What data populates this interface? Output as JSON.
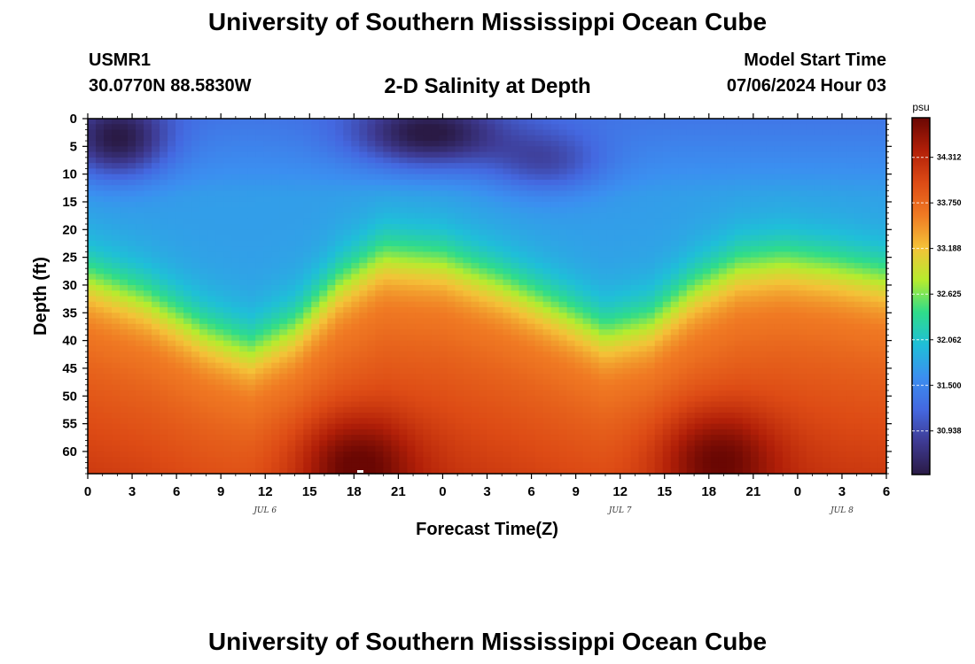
{
  "header": {
    "title": "University of Southern Mississippi Ocean Cube",
    "station_id": "USMR1",
    "station_coords": "30.0770N  88.5830W",
    "plot_title": "2-D Salinity at Depth",
    "model_start_label": "Model Start Time",
    "model_start_time": "07/06/2024 Hour 03"
  },
  "footer": {
    "title": "University of Southern Mississippi Ocean Cube"
  },
  "chart_data": {
    "type": "heatmap",
    "title": "2-D Salinity at Depth",
    "xlabel": "Forecast Time(Z)",
    "ylabel": "Depth (ft)",
    "x_hours_range": [
      0,
      54
    ],
    "y_depth_range_ft": [
      0,
      64
    ],
    "x_tick_labels": [
      "0",
      "3",
      "6",
      "9",
      "12",
      "15",
      "18",
      "21",
      "0",
      "3",
      "6",
      "9",
      "12",
      "15",
      "18",
      "21",
      "0",
      "3",
      "6"
    ],
    "y_tick_labels": [
      "0",
      "5",
      "10",
      "15",
      "20",
      "25",
      "30",
      "35",
      "40",
      "45",
      "50",
      "55",
      "60"
    ],
    "date_labels": [
      {
        "text": "JUL 6",
        "hour": 12
      },
      {
        "text": "JUL 7",
        "hour": 36
      },
      {
        "text": "JUL 8",
        "hour": 51
      }
    ],
    "colorbar": {
      "unit": "psu",
      "range": [
        30.4,
        34.8
      ],
      "tick_labels": [
        "34.312",
        "33.750",
        "33.188",
        "32.625",
        "32.062",
        "31.500",
        "30.938"
      ],
      "colors": [
        "#2a1a45",
        "#3e3a92",
        "#4468e0",
        "#3b8ff0",
        "#1fbfd8",
        "#2fdc8a",
        "#b6ec2e",
        "#f4c238",
        "#f07a23",
        "#dd4b15",
        "#b11f08",
        "#6a0703"
      ]
    },
    "thermocline_depth_ft": [
      {
        "hour": 0,
        "depth": 29
      },
      {
        "hour": 4,
        "depth": 33
      },
      {
        "hour": 8,
        "depth": 39
      },
      {
        "hour": 11,
        "depth": 42
      },
      {
        "hour": 14,
        "depth": 38
      },
      {
        "hour": 17,
        "depth": 30
      },
      {
        "hour": 20,
        "depth": 25
      },
      {
        "hour": 24,
        "depth": 26
      },
      {
        "hour": 28,
        "depth": 30
      },
      {
        "hour": 32,
        "depth": 35
      },
      {
        "hour": 35,
        "depth": 39
      },
      {
        "hour": 38,
        "depth": 37
      },
      {
        "hour": 41,
        "depth": 31
      },
      {
        "hour": 44,
        "depth": 27
      },
      {
        "hour": 47,
        "depth": 26
      },
      {
        "hour": 50,
        "depth": 27
      },
      {
        "hour": 54,
        "depth": 29
      }
    ],
    "surface_fresh_pockets": [
      {
        "hour": 2,
        "depth": 4,
        "spread_hours": 3.5,
        "spread_depth": 7,
        "strength": 1.0
      },
      {
        "hour": 23,
        "depth": 3,
        "spread_hours": 5,
        "spread_depth": 6,
        "strength": 1.0
      },
      {
        "hour": 31,
        "depth": 8,
        "spread_hours": 4,
        "spread_depth": 6,
        "strength": 0.6
      }
    ],
    "deep_salty_cores": [
      {
        "hour": 18,
        "depth": 62,
        "spread_hours": 4,
        "spread_depth": 9
      },
      {
        "hour": 42.5,
        "depth": 61,
        "spread_hours": 4,
        "spread_depth": 9
      }
    ]
  }
}
